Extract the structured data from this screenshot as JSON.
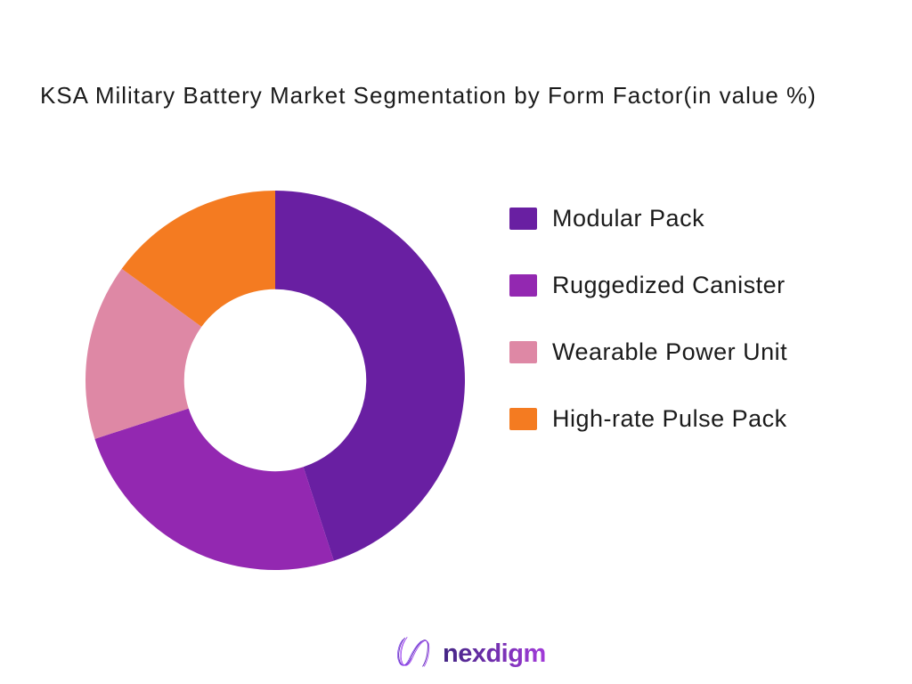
{
  "title": "KSA Military Battery Market Segmentation by Form Factor(in value %)",
  "chart_data": {
    "type": "pie",
    "subtype": "donut",
    "title": "KSA Military Battery Market Segmentation by Form Factor(in value %)",
    "categories": [
      "Modular Pack",
      "Ruggedized Canister",
      "Wearable Power Unit",
      "High-rate Pulse Pack"
    ],
    "values": [
      45,
      25,
      15,
      15
    ],
    "unit": "value %",
    "colors": [
      "#691FA2",
      "#9328B1",
      "#DE88A5",
      "#F47B21"
    ],
    "start_angle_deg": 0,
    "direction": "clockwise",
    "inner_radius_ratio": 0.48,
    "legend_position": "right",
    "data_labels_shown": false
  },
  "legend": {
    "items": [
      {
        "label": "Modular Pack",
        "color": "#691FA2"
      },
      {
        "label": "Ruggedized Canister",
        "color": "#9328B1"
      },
      {
        "label": "Wearable Power Unit",
        "color": "#DE88A5"
      },
      {
        "label": "High-rate Pulse Pack",
        "color": "#F47B21"
      }
    ]
  },
  "footer": {
    "brand": "nexdigm",
    "brand_gradient": [
      "#432584",
      "#A23BD9"
    ],
    "logo_icon": "nexdigm-n-monogram"
  },
  "colors": {
    "background": "#FFFFFF",
    "text": "#1B1B1B"
  }
}
